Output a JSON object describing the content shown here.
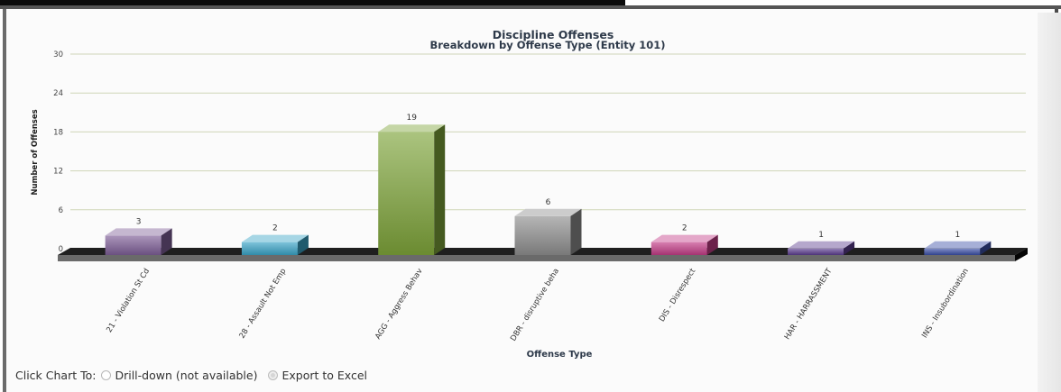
{
  "chart_data": {
    "type": "bar",
    "title": "Discipline Offenses",
    "subtitle": "Breakdown by Offense Type (Entity 101)",
    "xlabel": "Offense Type",
    "ylabel": "Number of Offenses",
    "ylim": [
      0,
      30
    ],
    "yticks": [
      0,
      6,
      12,
      18,
      24,
      30
    ],
    "grid": true,
    "categories": [
      "21 - Violation St Cd",
      "28 - Assault Not Emp",
      "AGG - Aggress Behav",
      "DBR - disruptive beha",
      "DIS - Disrespect",
      "HAR - HARRASSMENT",
      "INS - Insubordination"
    ],
    "values": [
      3,
      2,
      19,
      6,
      2,
      1,
      1
    ],
    "colors": [
      "#7d5e96",
      "#3aa3c6",
      "#7ea43a",
      "#8e8e8e",
      "#c23c86",
      "#5a3c8e",
      "#3a4ea6"
    ]
  },
  "footer": {
    "prefix": "Click Chart To:",
    "option1": "Drill-down (not available)",
    "option2": "Export to Excel"
  }
}
